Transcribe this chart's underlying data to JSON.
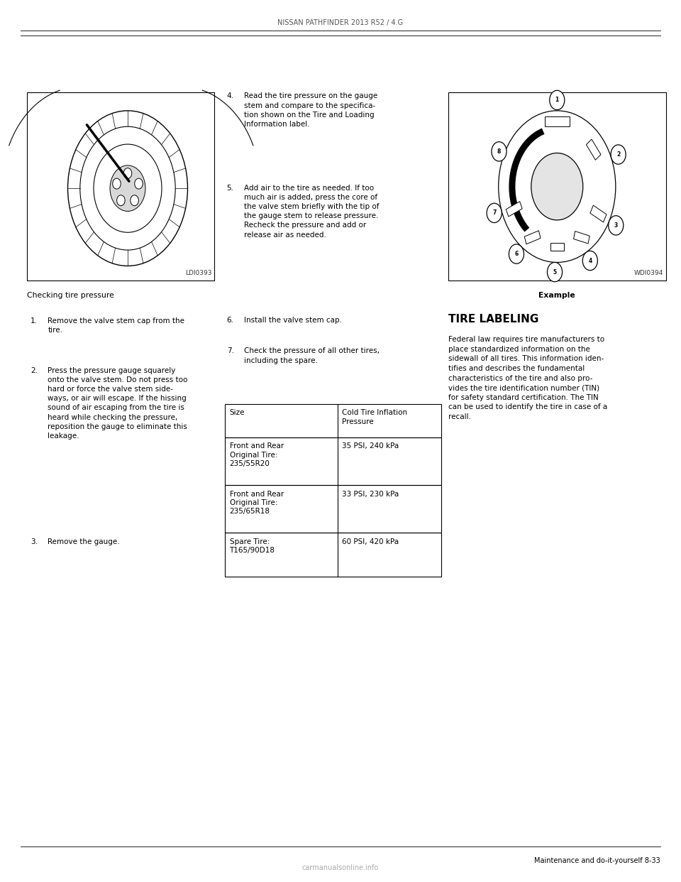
{
  "bg_color": "#ffffff",
  "page_width": 9.6,
  "page_height": 12.42,
  "header_text": "NISSAN PATHFINDER 2013 R52 / 4.G",
  "footer_text": "Maintenance and do-it-yourself 8-33",
  "watermark": "carmanualsonline.info",
  "left_image_caption": "Checking tire pressure",
  "left_image_label": "LDI0393",
  "right_image_label": "WDI0394",
  "right_image_caption": "Example",
  "tire_labeling_title": "TIRE LABELING",
  "step_texts_left": [
    [
      "1.",
      "Remove the valve stem cap from the\ntire."
    ],
    [
      "2.",
      "Press the pressure gauge squarely\nonto the valve stem. Do not press too\nhard or force the valve stem side-\nways, or air will escape. If the hissing\nsound of air escaping from the tire is\nheard while checking the pressure,\nreposition the gauge to eliminate this\nleakage."
    ],
    [
      "3.",
      "Remove the gauge."
    ]
  ],
  "step_texts_mid": [
    [
      "4.",
      "Read the tire pressure on the gauge\nstem and compare to the specifica-\ntion shown on the Tire and Loading\nInformation label."
    ],
    [
      "5.",
      "Add air to the tire as needed. If too\nmuch air is added, press the core of\nthe valve stem briefly with the tip of\nthe gauge stem to release pressure.\nRecheck the pressure and add or\nrelease air as needed."
    ],
    [
      "6.",
      "Install the valve stem cap."
    ],
    [
      "7.",
      "Check the pressure of all other tires,\nincluding the spare."
    ]
  ],
  "table_rows": [
    [
      "Size",
      "Cold Tire Inflation\nPressure"
    ],
    [
      "Front and Rear\nOriginal Tire:\n235/55R20",
      "35 PSI, 240 kPa"
    ],
    [
      "Front and Rear\nOriginal Tire:\n235/65R18",
      "33 PSI, 230 kPa"
    ],
    [
      "Spare Tire:\nT165/90D18",
      "60 PSI, 420 kPa"
    ]
  ],
  "tire_labeling_body": "Federal law requires tire manufacturers to\nplace standardized information on the\nsidewall of all tires. This information iden-\ntifies and describes the fundamental\ncharacteristics of the tire and also pro-\nvides the tire identification number (TIN)\nfor safety standard certification. The TIN\ncan be used to identify the tire in case of a\nrecall."
}
